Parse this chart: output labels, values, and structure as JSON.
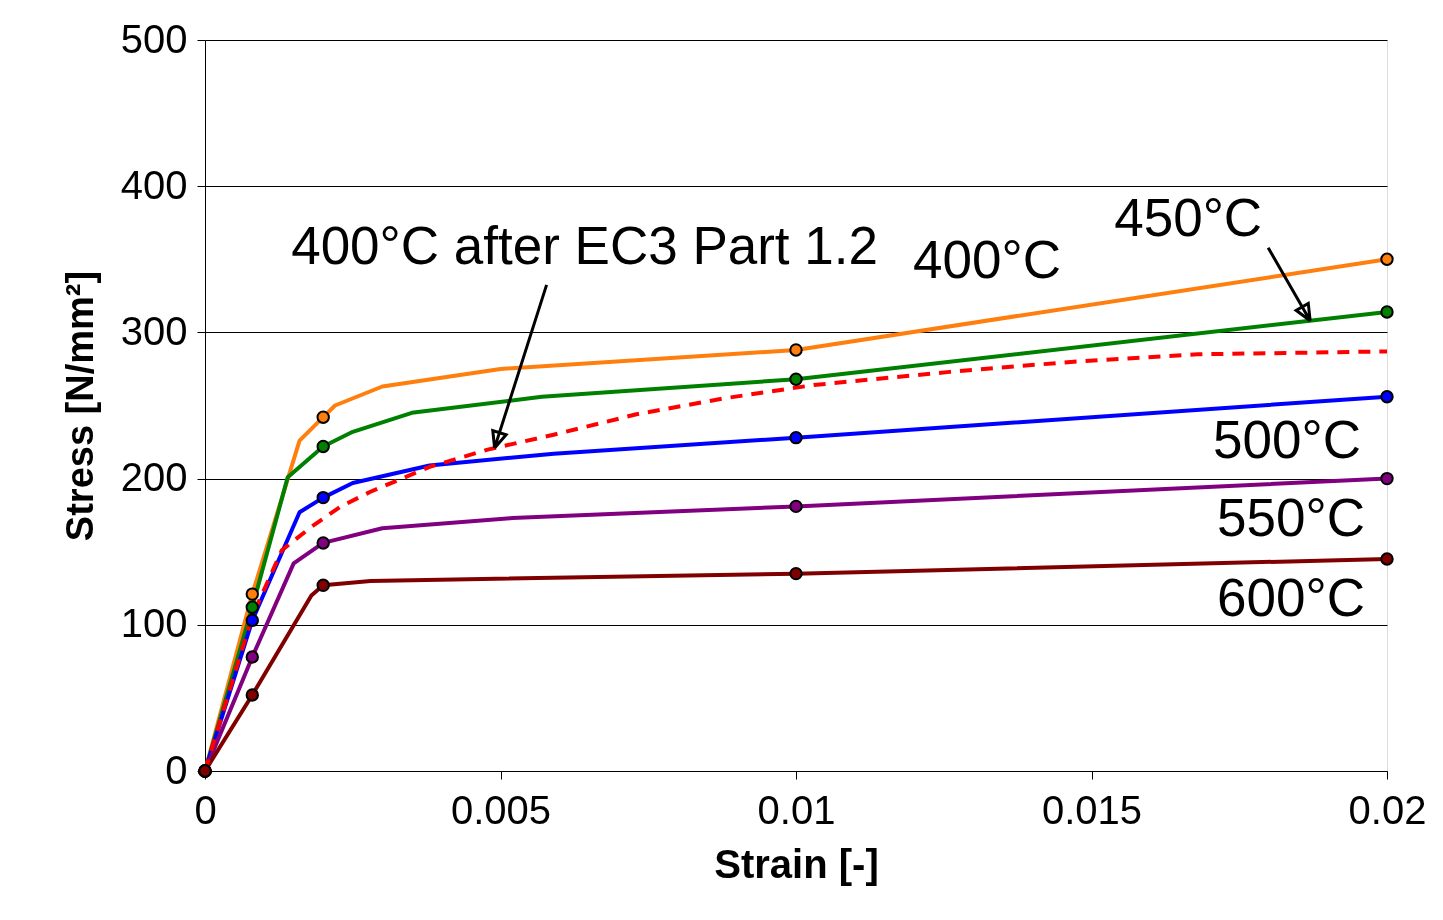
{
  "chart_data": {
    "type": "line",
    "xlabel": "Strain [-]",
    "ylabel": "Stress [N/mm²]",
    "xlim": [
      0,
      0.02
    ],
    "xticks": [
      0,
      0.005,
      0.01,
      0.015,
      0.02
    ],
    "ylim": [
      0,
      500
    ],
    "yticks": [
      0,
      100,
      200,
      300,
      400,
      500
    ],
    "grid": "y",
    "marker": "none",
    "line_style": "solid",
    "series": [
      {
        "type": "line",
        "color": "#ff7f0e",
        "x": [
          0,
          0.0008,
          0.0016,
          0.002,
          0.0022,
          0.003,
          0.005,
          0.01,
          0.02
        ],
        "values": [
          0,
          121,
          226,
          242,
          250,
          263,
          275,
          288,
          350
        ]
      },
      {
        "type": "line",
        "color": "#008000",
        "x": [
          0,
          0.0008,
          0.0014,
          0.002,
          0.0025,
          0.0035,
          0.0057,
          0.01,
          0.02
        ],
        "values": [
          0,
          112,
          201,
          222,
          232,
          245,
          256,
          268,
          314
        ]
      },
      {
        "type": "line",
        "color": "#0000ff",
        "x": [
          0,
          0.0008,
          0.0016,
          0.002,
          0.0025,
          0.0038,
          0.0059,
          0.01,
          0.02
        ],
        "values": [
          0,
          103,
          177,
          187,
          197,
          209,
          217,
          228,
          256
        ]
      },
      {
        "type": "line",
        "color": "#800080",
        "x": [
          0,
          0.0008,
          0.0015,
          0.002,
          0.003,
          0.0052,
          0.01,
          0.02
        ],
        "values": [
          0,
          78,
          142,
          156,
          166,
          173,
          181,
          200
        ]
      },
      {
        "type": "line",
        "color": "#800000",
        "x": [
          0,
          0.0008,
          0.0018,
          0.002,
          0.0028,
          0.01,
          0.02
        ],
        "values": [
          0,
          52,
          120,
          127,
          130,
          135,
          145
        ]
      },
      {
        "type": "line",
        "color": "#ff0000",
        "line_style": "dashed",
        "x": [
          0,
          0.0004,
          0.0008,
          0.0013,
          0.0018,
          0.0023,
          0.0028,
          0.0038,
          0.0048,
          0.0059,
          0.0073,
          0.0088,
          0.0103,
          0.0126,
          0.0147,
          0.0168,
          0.02
        ],
        "values": [
          0,
          53,
          106,
          151,
          167,
          181,
          191,
          208,
          220,
          230,
          244,
          255,
          264,
          273,
          280,
          285,
          287
        ]
      },
      {
        "type": "scatter",
        "marker": "circle",
        "color": "#ff7f0e",
        "x": [
          0,
          0.0008,
          0.002,
          0.01,
          0.02
        ],
        "values": [
          0,
          121,
          242,
          288,
          350
        ]
      },
      {
        "type": "scatter",
        "marker": "circle",
        "color": "#008000",
        "x": [
          0,
          0.0008,
          0.002,
          0.01,
          0.02
        ],
        "values": [
          0,
          112,
          222,
          268,
          314
        ]
      },
      {
        "type": "scatter",
        "marker": "circle",
        "color": "#0000ff",
        "x": [
          0,
          0.0008,
          0.002,
          0.01,
          0.02
        ],
        "values": [
          0,
          103,
          187,
          228,
          256
        ]
      },
      {
        "type": "scatter",
        "marker": "circle",
        "color": "#800080",
        "x": [
          0,
          0.0008,
          0.002,
          0.01,
          0.02
        ],
        "values": [
          0,
          78,
          156,
          181,
          200
        ]
      },
      {
        "type": "scatter",
        "marker": "circle",
        "color": "#800000",
        "x": [
          0,
          0.0008,
          0.002,
          0.01,
          0.02
        ],
        "values": [
          0,
          52,
          127,
          135,
          145
        ]
      }
    ],
    "annotations": [
      {
        "text": "400°C after EC3 Part 1.2",
        "x": 0.0049,
        "y": 221
      },
      "400°C",
      {
        "text": "450°C",
        "x": 0.0187,
        "y": 308
      },
      "500°C",
      "550°C",
      "600°C"
    ]
  }
}
